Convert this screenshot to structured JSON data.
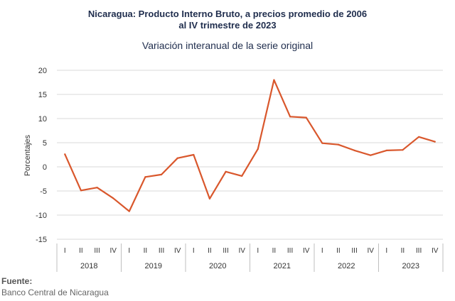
{
  "chart_data": {
    "type": "line",
    "title_line1": "Nicaragua: Producto Interno Bruto, a precios promedio de 2006",
    "title_line2": "al IV trimestre de 2023",
    "subtitle": "Variación interanual de la serie original",
    "ylabel": "Porcentajes",
    "ylim": [
      -15,
      20
    ],
    "yticks": [
      20,
      15,
      10,
      5,
      0,
      -5,
      -10,
      -15
    ],
    "quarters": [
      "I",
      "II",
      "III",
      "IV"
    ],
    "years": [
      "2018",
      "2019",
      "2020",
      "2021",
      "2022",
      "2023"
    ],
    "series": [
      {
        "color": "#d9572c",
        "values": [
          2.6,
          -4.9,
          -4.3,
          -6.5,
          -9.2,
          -2.1,
          -1.6,
          1.8,
          2.5,
          -6.6,
          -1.0,
          -1.9,
          3.7,
          18.0,
          10.4,
          10.2,
          4.9,
          4.6,
          3.4,
          2.4,
          3.4,
          3.5,
          6.2,
          5.2
        ]
      }
    ],
    "grid": true
  },
  "source": {
    "label": "Fuente:",
    "value": "Banco Central de Nicaragua"
  }
}
